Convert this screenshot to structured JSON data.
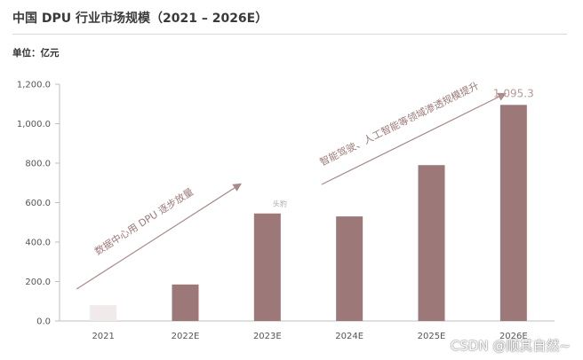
{
  "title": "中国 DPU 行业市场规模（2021 – 2026E）",
  "unit_label": "单位：亿元",
  "watermark": "CSDN @顺其自然~",
  "colors": {
    "bar": "#9c7878",
    "bar_first": "#f0eaea",
    "arrow": "#a88a8a",
    "annotation_text": "#9c7878",
    "axis_text": "#555555",
    "value_label": "#b89a9a"
  },
  "chart_data": {
    "type": "bar",
    "categories": [
      "2021",
      "2022E",
      "2023E",
      "2024E",
      "2025E",
      "2026E"
    ],
    "values": [
      80,
      185,
      545,
      530,
      790,
      1095.3
    ],
    "ylim": [
      0,
      1200
    ],
    "yticks": [
      0,
      200,
      400,
      600,
      800,
      1000,
      1200
    ],
    "ytick_labels": [
      "0.0",
      "200.0",
      "400.0",
      "600.0",
      "800.0",
      "1,000.0",
      "1,200.0"
    ],
    "grid": false,
    "data_labels": [
      {
        "category": "2026E",
        "text": "1,095.3"
      }
    ],
    "annotations": [
      {
        "text": "数据中心用 DPU 逐步放量",
        "from_category": "2021",
        "to_category": "2023E"
      },
      {
        "text": "智能驾驶、人工智能等领域渗透规模提升",
        "from_category": "2024E",
        "to_category": "2026E"
      }
    ],
    "watermark_small": "头豹"
  }
}
